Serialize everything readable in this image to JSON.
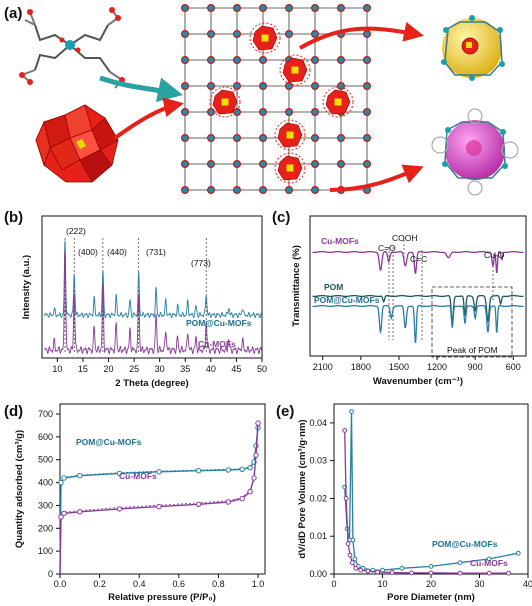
{
  "figure": {
    "panel_a": {
      "label": "(a)"
    },
    "panel_b": {
      "label": "(b)",
      "xlabel": "2 Theta (degree)",
      "ylabel": "Intensity (a.u.)",
      "xticks": [
        "10",
        "15",
        "20",
        "25",
        "30",
        "35",
        "40",
        "45",
        "50"
      ],
      "peaks": [
        "(222)",
        "(400)",
        "(440)",
        "(731)",
        "(773)"
      ],
      "series": [
        "POM@Cu-MOFs",
        "Cu-MOFs"
      ]
    },
    "panel_c": {
      "label": "(c)",
      "xlabel": "Wavenumber (cm⁻¹)",
      "ylabel": "Transmittance (%)",
      "xticks": [
        "2100",
        "1800",
        "1500",
        "1200",
        "900",
        "600"
      ],
      "bands": [
        "C=O",
        "COOH",
        "C=C",
        "Cu-O"
      ],
      "series": [
        "Cu-MOFs",
        "POM",
        "POM@Cu-MOFs"
      ],
      "box_label": "Peak of POM"
    },
    "panel_d": {
      "label": "(d)",
      "xlabel": "Relative pressure (P/P₀)",
      "ylabel": "Quantity adsorbed (cm³/g)",
      "xticks": [
        "0.0",
        "0.2",
        "0.4",
        "0.6",
        "0.8",
        "1.0"
      ],
      "yticks": [
        "0",
        "100",
        "200",
        "300",
        "400",
        "500",
        "600",
        "700"
      ],
      "series": [
        "POM@Cu-MOFs",
        "Cu-MOFs"
      ]
    },
    "panel_e": {
      "label": "(e)",
      "xlabel": "Pore Diameter (nm)",
      "ylabel": "dV/dD Pore Volume (cm³/g·nm)",
      "xticks": [
        "0",
        "10",
        "20",
        "30",
        "40"
      ],
      "yticks": [
        "0.00",
        "0.01",
        "0.02",
        "0.03",
        "0.04"
      ],
      "series": [
        "POM@Cu-MOFs",
        "Cu-MOFs"
      ]
    }
  },
  "colors": {
    "pom_cu_mofs": "#2a7fa3",
    "cu_mofs": "#8a3a9a",
    "pom": "#1e5a5a",
    "polyhedron": "#e8201a",
    "cube": "#f5e000"
  },
  "chart_data": [
    {
      "type": "line",
      "panel": "b",
      "xlabel": "2 Theta (degree)",
      "ylabel": "Intensity (a.u.)",
      "xlim": [
        7,
        50
      ],
      "series": [
        {
          "name": "POM@Cu-MOFs",
          "peak_positions": [
            11.5,
            13.3,
            18.9,
            25.9,
            39.1
          ]
        },
        {
          "name": "Cu-MOFs",
          "peak_positions": [
            11.5,
            13.3,
            18.9,
            25.9,
            39.1
          ]
        }
      ]
    },
    {
      "type": "line",
      "panel": "c",
      "xlabel": "Wavenumber (cm⁻¹)",
      "ylabel": "Transmittance (%)",
      "xlim": [
        2200,
        500
      ],
      "series": [
        {
          "name": "Cu-MOFs"
        },
        {
          "name": "POM"
        },
        {
          "name": "POM@Cu-MOFs"
        }
      ]
    },
    {
      "type": "line",
      "panel": "d",
      "xlabel": "Relative pressure (P/P₀)",
      "ylabel": "Quantity adsorbed (cm³/g)",
      "xlim": [
        0,
        1.0
      ],
      "ylim": [
        0,
        700
      ],
      "series": [
        {
          "name": "POM@Cu-MOFs",
          "x": [
            0.0,
            0.005,
            0.02,
            0.1,
            0.3,
            0.5,
            0.7,
            0.85,
            0.92,
            0.96,
            0.98,
            0.99,
            1.0
          ],
          "y": [
            0,
            400,
            420,
            430,
            440,
            447,
            452,
            455,
            458,
            465,
            490,
            560,
            640
          ]
        },
        {
          "name": "Cu-MOFs",
          "x": [
            0.0,
            0.005,
            0.02,
            0.1,
            0.3,
            0.5,
            0.7,
            0.85,
            0.92,
            0.96,
            0.98,
            0.99,
            1.0
          ],
          "y": [
            0,
            250,
            265,
            272,
            285,
            295,
            305,
            315,
            330,
            360,
            420,
            520,
            660
          ]
        }
      ]
    },
    {
      "type": "line",
      "panel": "e",
      "xlabel": "Pore Diameter (nm)",
      "ylabel": "dV/dD Pore Volume (cm³/g·nm)",
      "xlim": [
        0,
        40
      ],
      "ylim": [
        0,
        0.045
      ],
      "series": [
        {
          "name": "POM@Cu-MOFs",
          "x": [
            2.2,
            2.7,
            3.2,
            3.6,
            3.9,
            4.3,
            5,
            6,
            8,
            10,
            14,
            20,
            26,
            32,
            38
          ],
          "y": [
            0.023,
            0.012,
            0.009,
            0.043,
            0.009,
            0.004,
            0.002,
            0.0015,
            0.001,
            0.001,
            0.0015,
            0.002,
            0.003,
            0.004,
            0.0055
          ]
        },
        {
          "name": "Cu-MOFs",
          "x": [
            2.2,
            2.5,
            2.9,
            3.3,
            3.8,
            4.5,
            5.5,
            7,
            9,
            12,
            16,
            20,
            26,
            32,
            36
          ],
          "y": [
            0.038,
            0.02,
            0.008,
            0.005,
            0.003,
            0.0015,
            0.001,
            0.0008,
            0.0005,
            0.0004,
            0.0003,
            0.0003,
            0.0002,
            0.0002,
            0.0002
          ]
        }
      ]
    }
  ]
}
